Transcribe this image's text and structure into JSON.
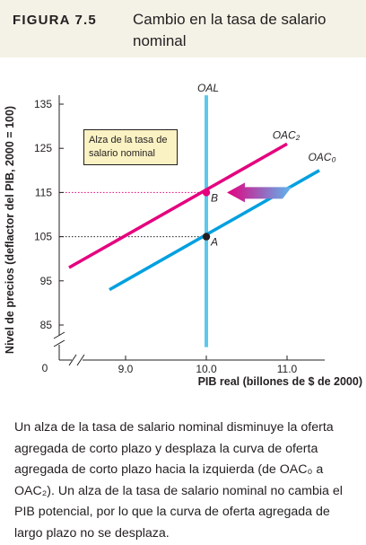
{
  "figure": {
    "label": "FIGURA 7.5",
    "title": "Cambio en la tasa de salario nominal"
  },
  "chart_data": {
    "type": "line",
    "xlabel": "PIB real (billones de $ de 2000)",
    "ylabel": "Nivel de precios (deflactor del PIB, 2000 = 100)",
    "xticks": [
      "9.0",
      "10.0",
      "11.0"
    ],
    "yticks": [
      "85",
      "95",
      "105",
      "115",
      "125",
      "135"
    ],
    "origin_label": "0",
    "xlim": [
      8.0,
      11.6
    ],
    "ylim": [
      80,
      137
    ],
    "axis_breaks": true,
    "grid": false,
    "series": [
      {
        "name": "OAL",
        "color": "#5bc8ec",
        "points": [
          [
            10.0,
            80
          ],
          [
            10.0,
            137
          ]
        ]
      },
      {
        "name": "OAC₂",
        "color": "#e5007e",
        "points": [
          [
            8.3,
            98
          ],
          [
            11.0,
            126
          ]
        ]
      },
      {
        "name": "OAC₀",
        "color": "#00a0e0",
        "points": [
          [
            8.8,
            93
          ],
          [
            11.4,
            120
          ]
        ]
      }
    ],
    "points": [
      {
        "label": "A",
        "x": 10.0,
        "y": 105,
        "color": "#231f20"
      },
      {
        "label": "B",
        "x": 10.0,
        "y": 115,
        "color": "#e5007e"
      }
    ],
    "annotations": {
      "note": "Alza de la tasa de salario nominal",
      "arrow": {
        "from": [
          11.0,
          115
        ],
        "to": [
          10.3,
          115
        ],
        "color_start": "#e5007e",
        "color_end": "#5bb8f0"
      }
    }
  },
  "caption": "Un alza de la tasa de salario nominal disminuye la oferta agregada de corto plazo y desplaza la curva de oferta agregada de corto plazo hacia la izquierda (de OAC₀ a OAC₂). Un alza de la tasa de salario nominal no cambia el PIB potencial, por lo que la curva de oferta agregada de largo plazo no se desplaza."
}
